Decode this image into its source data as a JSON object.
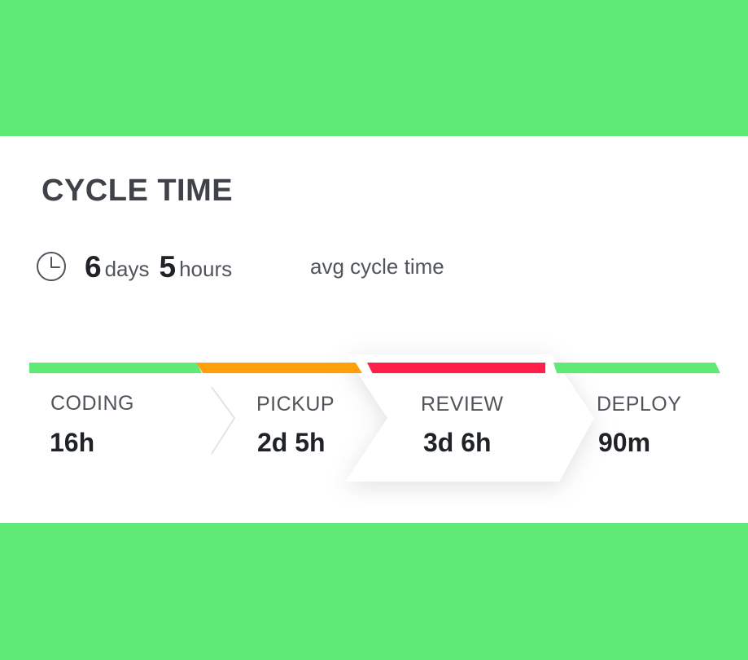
{
  "card": {
    "title": "CYCLE TIME",
    "summary": {
      "days_value": "6",
      "days_unit": "days",
      "hours_value": "5",
      "hours_unit": "hours",
      "label": "avg cycle time",
      "icon": "clock-icon"
    }
  },
  "stages": [
    {
      "label": "CODING",
      "value": "16h",
      "color": "#5eea74"
    },
    {
      "label": "PICKUP",
      "value": "2d 5h",
      "color": "#ff9f0a"
    },
    {
      "label": "REVIEW",
      "value": "3d 6h",
      "color": "#ff1f4a",
      "highlighted": true
    },
    {
      "label": "DEPLOY",
      "value": "90m",
      "color": "#5eea74"
    }
  ],
  "colors": {
    "background": "#5eea74",
    "card": "#ffffff",
    "text_primary": "#1f2226",
    "text_secondary": "#50545b"
  }
}
